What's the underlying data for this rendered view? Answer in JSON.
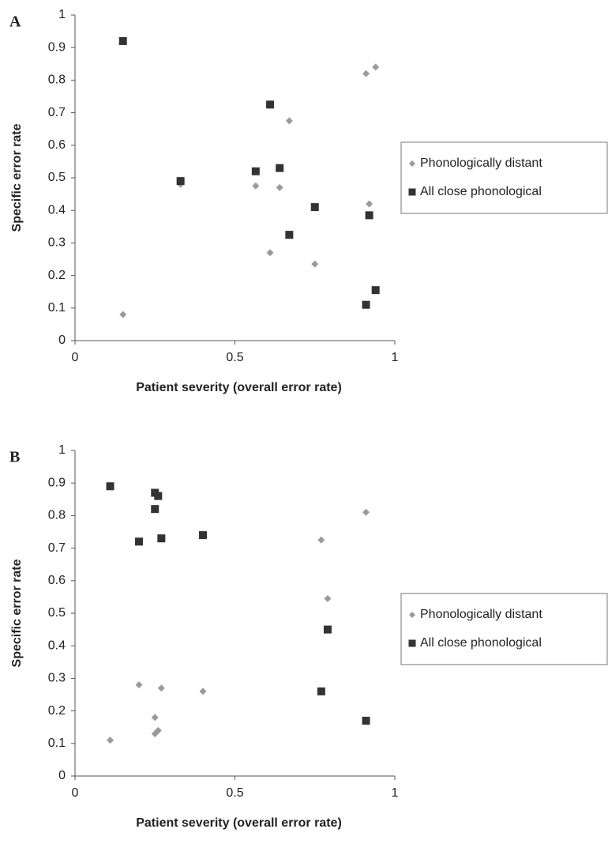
{
  "chart_data": [
    {
      "type": "scatter",
      "panel": "A",
      "x_label": "Patient severity (overall error rate)",
      "y_label": "Specific error rate",
      "x": [
        0.15,
        0.33,
        0.565,
        0.61,
        0.64,
        0.67,
        0.75,
        0.91,
        0.92,
        0.94
      ],
      "series": [
        {
          "name": "Phonologically distant",
          "color": "#9a9a9a",
          "marker": "diamond",
          "values": [
            0.08,
            0.48,
            0.475,
            0.27,
            0.47,
            0.675,
            0.235,
            0.82,
            0.42,
            0.84
          ]
        },
        {
          "name": "All close phonological",
          "color": "#333333",
          "marker": "square",
          "values": [
            0.92,
            0.49,
            0.52,
            0.725,
            0.53,
            0.325,
            0.41,
            0.11,
            0.385,
            0.155
          ]
        }
      ],
      "xlim": [
        0,
        1
      ],
      "xticks": [
        0,
        0.5,
        1
      ],
      "ylim": [
        0,
        1
      ],
      "yticks": [
        0,
        0.1,
        0.2,
        0.3,
        0.4,
        0.5,
        0.6,
        0.7,
        0.8,
        0.9,
        1
      ]
    },
    {
      "type": "scatter",
      "panel": "B",
      "x_label": "Patient severity (overall error rate)",
      "y_label": "Specific error rate",
      "x": [
        0.11,
        0.2,
        0.25,
        0.25,
        0.26,
        0.27,
        0.4,
        0.77,
        0.79,
        0.91
      ],
      "series": [
        {
          "name": "Phonologically distant",
          "color": "#9a9a9a",
          "marker": "diamond",
          "values": [
            0.11,
            0.28,
            0.18,
            0.13,
            0.14,
            0.27,
            0.26,
            0.725,
            0.545,
            0.81
          ]
        },
        {
          "name": "All close phonological",
          "color": "#333333",
          "marker": "square",
          "values": [
            0.89,
            0.72,
            0.87,
            0.82,
            0.86,
            0.73,
            0.74,
            0.26,
            0.45,
            0.17
          ]
        }
      ],
      "xlim": [
        0,
        1
      ],
      "xticks": [
        0,
        0.5,
        1
      ],
      "ylim": [
        0,
        1
      ],
      "yticks": [
        0,
        0.1,
        0.2,
        0.3,
        0.4,
        0.5,
        0.6,
        0.7,
        0.8,
        0.9,
        1
      ]
    }
  ]
}
